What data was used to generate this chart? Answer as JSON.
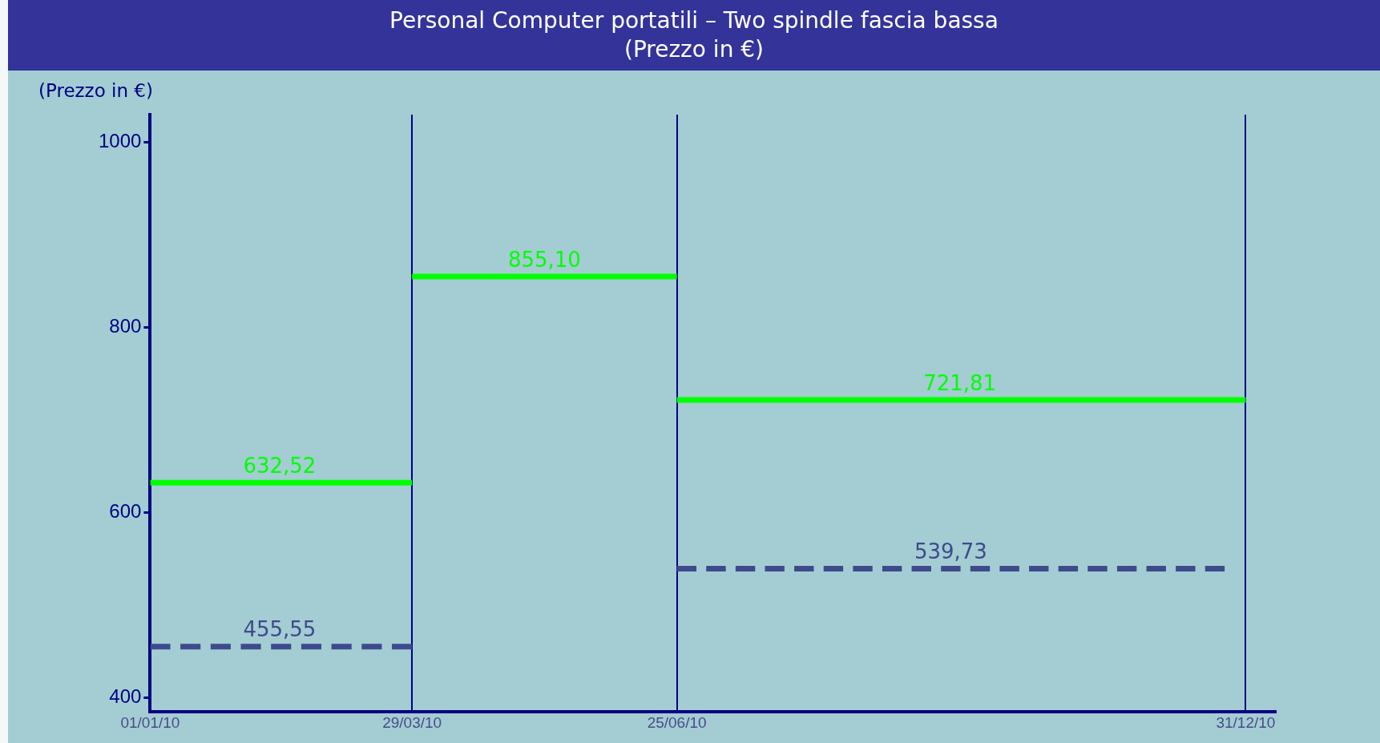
{
  "chart_data": {
    "type": "line",
    "title": "Personal Computer portatili – Two spindle fascia bassa",
    "subtitle": "(Prezzo in €)",
    "ylabel": "(Prezzo in €)",
    "xlim": [
      "2010-01-01",
      "2011-01-10"
    ],
    "xticks": [
      {
        "value": "2010-01-01",
        "label": "01/01/10"
      },
      {
        "value": "2010-03-29",
        "label": "29/03/10"
      },
      {
        "value": "2010-06-25",
        "label": "25/06/10"
      },
      {
        "value": "2010-12-31",
        "label": "31/12/10"
      }
    ],
    "ylim": [
      385,
      1030
    ],
    "yticks": [
      400,
      600,
      800,
      1000
    ],
    "grid": "x",
    "marker": "none",
    "series": [
      {
        "color": "#00ff00",
        "line_style": "solid",
        "x": [
          "2010-01-01",
          "2010-02-13",
          "2010-03-29"
        ],
        "values": [
          632.52,
          632.52,
          632.52
        ],
        "value_labels": [
          null,
          "632,52",
          null
        ]
      },
      {
        "color": "#00ff00",
        "line_style": "solid",
        "x": [
          "2010-03-29",
          "2010-05-12",
          "2010-06-25"
        ],
        "values": [
          855.1,
          855.1,
          855.1
        ],
        "value_labels": [
          null,
          "855,10",
          null
        ]
      },
      {
        "color": "#00ff00",
        "line_style": "solid",
        "x": [
          "2010-06-25",
          "2010-09-27",
          "2010-12-31"
        ],
        "values": [
          721.81,
          721.81,
          721.81
        ],
        "value_labels": [
          null,
          "721,81",
          null
        ]
      },
      {
        "color": "#3f4a8c",
        "line_style": "dashed",
        "x": [
          "2010-01-01",
          "2010-02-13",
          "2010-03-29"
        ],
        "values": [
          455.55,
          455.55,
          455.55
        ],
        "value_labels": [
          null,
          "455,55",
          null
        ]
      },
      {
        "color": "#3f4a8c",
        "line_style": "dashed",
        "x": [
          "2010-06-25",
          "2010-09-24",
          "2010-12-24"
        ],
        "values": [
          539.73,
          539.73,
          539.73
        ],
        "value_labels": [
          null,
          "539,73",
          null
        ]
      }
    ]
  }
}
